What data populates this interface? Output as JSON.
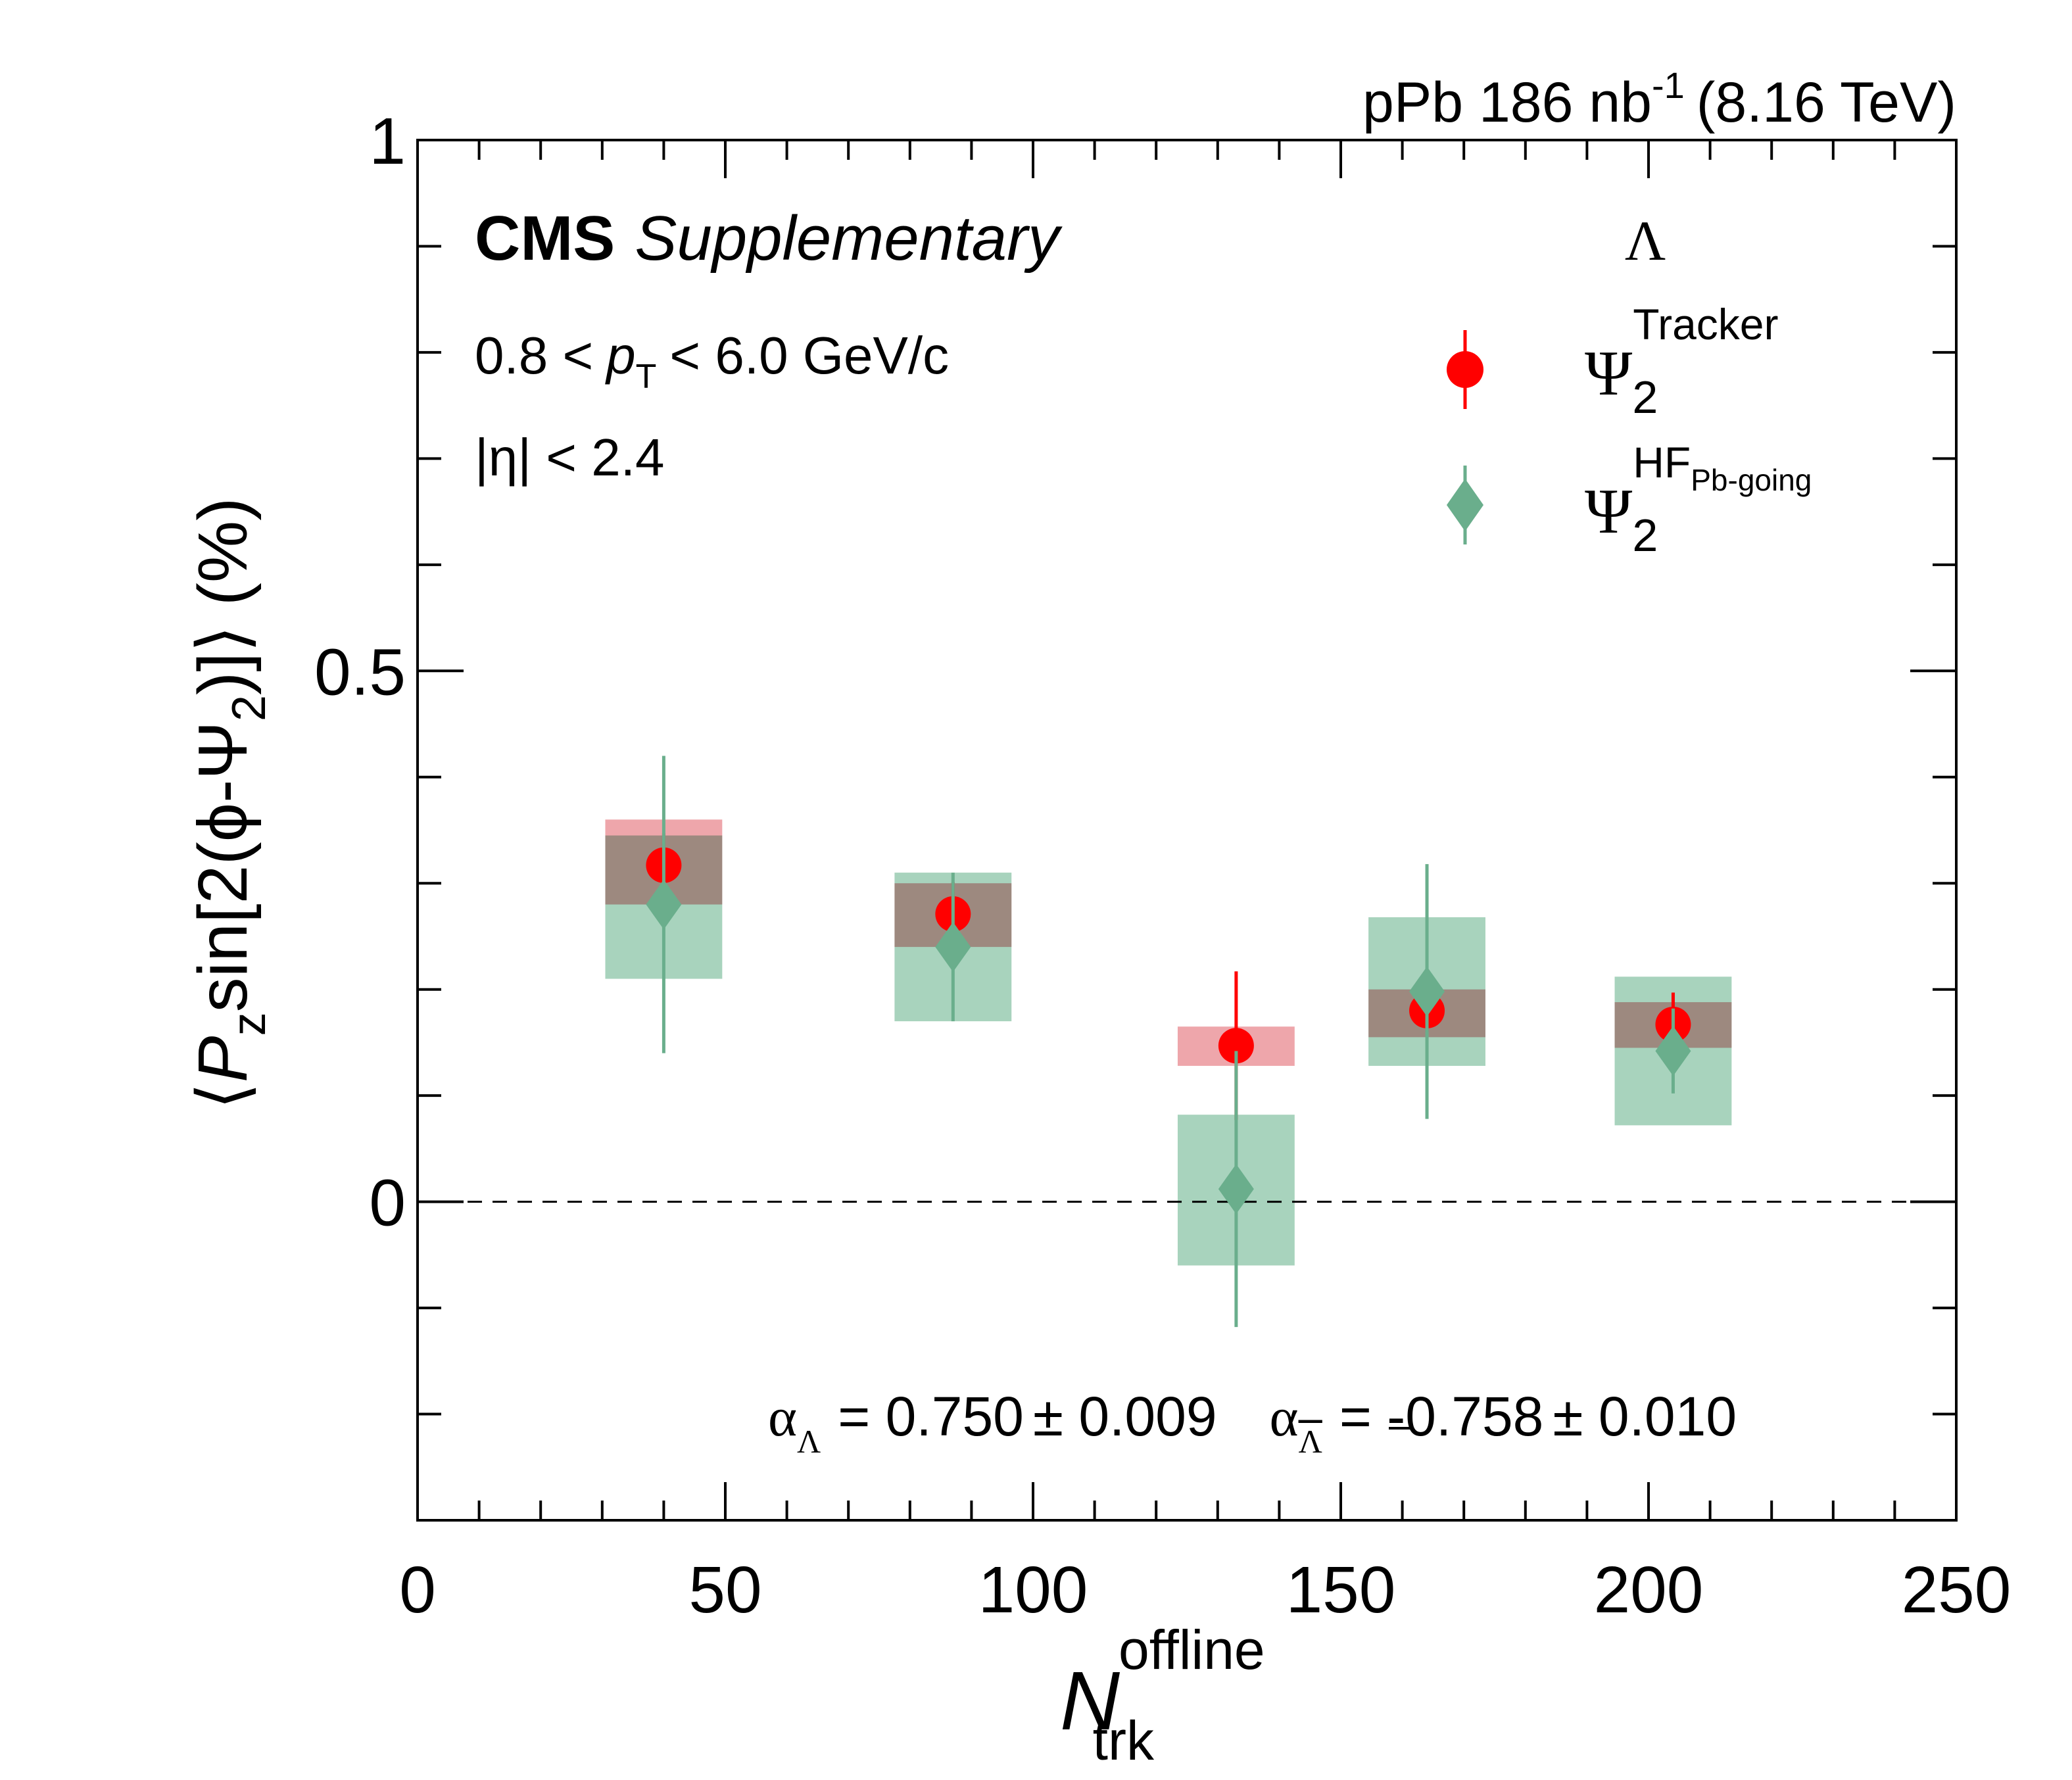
{
  "header": {
    "lumi": "pPb 186 nb",
    "lumi_sup": "-1",
    "energy": "(8.16 TeV)",
    "experiment": "CMS",
    "tag": "Supplementary"
  },
  "cuts": {
    "pt_pre": "0.8 <",
    "pt_var": "p",
    "pt_sub": "T",
    "pt_post": "< 6.0 GeV/c",
    "eta": "|η| < 2.4"
  },
  "alpha": {
    "sym": "α",
    "lambda_sub": "Λ",
    "lambda_value": "= 0.750",
    "lambda_err": "± 0.009",
    "antilambda_sub": "Λ",
    "antilambda_value": "= -0.758",
    "antilambda_err": "± 0.010"
  },
  "legend": {
    "header": "Λ",
    "psi": "Ψ",
    "sub": "2",
    "tracker_sup": "Tracker",
    "hf_sup": "HF",
    "hf_sup_sub": "Pb-going"
  },
  "axes": {
    "y_open": "⟨",
    "y_P": "P",
    "y_z": "z",
    "y_sin": "sin[2(ϕ-Ψ",
    "y_2": "2",
    "y_close": ")]⟩ (%)",
    "x_N": "N",
    "x_sup": "offline",
    "x_sub": "trk"
  },
  "colors": {
    "tracker": "#ff0000",
    "tracker_syst": "#e8888f",
    "hf": "#6aae8c",
    "hf_syst": "#a8d3bd",
    "overlap": "#b0a092"
  },
  "chart_data": {
    "type": "scatter",
    "xlim": [
      0,
      250
    ],
    "ylim": [
      -0.3,
      1.0
    ],
    "x_ticks": [
      0,
      50,
      100,
      150,
      200,
      250
    ],
    "x_tick_labels": [
      "0",
      "50",
      "100",
      "150",
      "200",
      "250"
    ],
    "y_ticks": [
      0,
      0.5,
      1
    ],
    "y_tick_labels": [
      "0",
      "0.5",
      "1"
    ],
    "reference_line": 0,
    "legend_position": "top-right",
    "series": [
      {
        "name": "Ψ2 Tracker",
        "marker": "circle",
        "points": [
          {
            "x": 40,
            "y": 0.317,
            "stat": 0.03,
            "syst_lo": 0.28,
            "syst_hi": 0.36
          },
          {
            "x": 87,
            "y": 0.271,
            "stat": 0.03,
            "syst_lo": 0.24,
            "syst_hi": 0.3
          },
          {
            "x": 133,
            "y": 0.147,
            "stat": 0.07,
            "syst_lo": 0.128,
            "syst_hi": 0.165
          },
          {
            "x": 164,
            "y": 0.18,
            "stat": 0.02,
            "syst_lo": 0.155,
            "syst_hi": 0.2
          },
          {
            "x": 204,
            "y": 0.167,
            "stat": 0.03,
            "syst_lo": 0.145,
            "syst_hi": 0.188
          }
        ]
      },
      {
        "name": "Ψ2 HF Pb-going",
        "marker": "diamond",
        "points": [
          {
            "x": 40,
            "y": 0.28,
            "stat": 0.14,
            "syst_lo": 0.21,
            "syst_hi": 0.345
          },
          {
            "x": 87,
            "y": 0.24,
            "stat": 0.07,
            "syst_lo": 0.17,
            "syst_hi": 0.31
          },
          {
            "x": 133,
            "y": 0.012,
            "stat": 0.13,
            "syst_lo": -0.06,
            "syst_hi": 0.082
          },
          {
            "x": 164,
            "y": 0.198,
            "stat": 0.12,
            "syst_lo": 0.128,
            "syst_hi": 0.268
          },
          {
            "x": 204,
            "y": 0.142,
            "stat": 0.04,
            "syst_lo": 0.072,
            "syst_hi": 0.212
          }
        ]
      }
    ]
  }
}
